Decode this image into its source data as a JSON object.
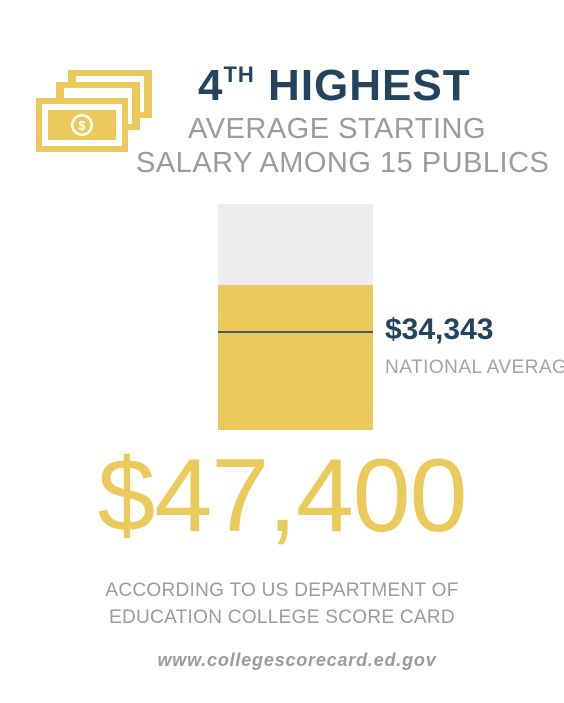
{
  "colors": {
    "accent_gold": "#ebc95b",
    "navy": "#24445e",
    "gray_text": "#9b9b9b",
    "track": "#eceeed"
  },
  "icon": "money-stack-icon",
  "header": {
    "rank_number": "4",
    "rank_suffix": "TH",
    "rank_word": "HIGHEST",
    "line1": "AVERAGE STARTING",
    "line2": "SALARY AMONG 15 PUBLICS"
  },
  "gauge": {
    "fill_fraction": 0.64,
    "national_avg_fraction": 0.43
  },
  "national_average": {
    "value": "$34,343",
    "label": "NATIONAL AVERAGE"
  },
  "salary": "$47,400",
  "source": {
    "line1": "ACCORDING TO US DEPARTMENT OF",
    "line2": "EDUCATION COLLEGE SCORE CARD",
    "url": "www.collegescorecard.ed.gov"
  }
}
